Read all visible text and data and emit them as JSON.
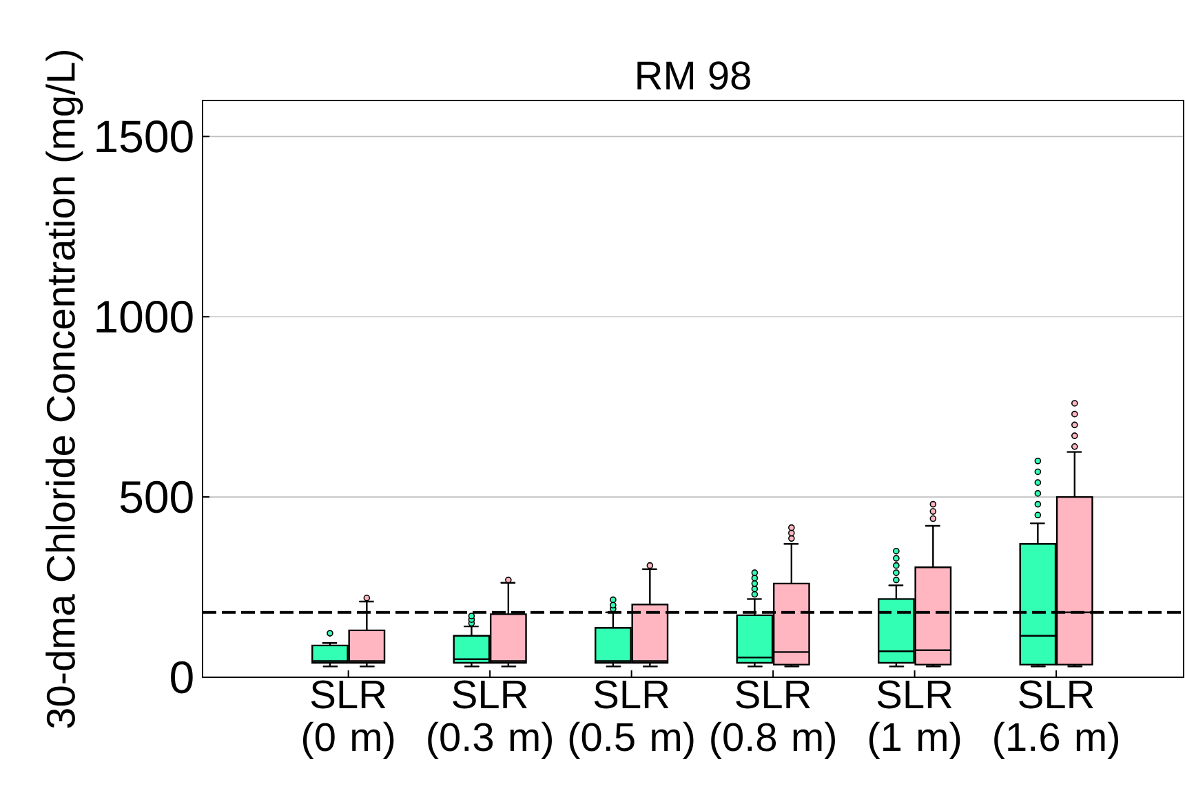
{
  "chart_data": {
    "type": "box",
    "title": "RM 98",
    "ylabel": "30-dma Chloride Concentration (mg/L)",
    "categories": [
      "SLR (0 m)",
      "SLR (0.3 m)",
      "SLR (0.5 m)",
      "SLR (0.8 m)",
      "SLR (1 m)",
      "SLR (1.6 m)"
    ],
    "ylim": [
      0,
      1600
    ],
    "yticks": [
      0,
      500,
      1000,
      1500
    ],
    "grid": "y",
    "ref_lines": [
      {
        "axis": "y",
        "value": 180,
        "line_style": "dashed",
        "color": "#000000"
      }
    ],
    "series": [
      {
        "color": "#33ffb4",
        "boxes": [
          {
            "low": 30,
            "q1": 40,
            "median": 45,
            "q3": 88,
            "high": 95,
            "outliers": [
              122
            ]
          },
          {
            "low": 30,
            "q1": 40,
            "median": 50,
            "q3": 115,
            "high": 141,
            "outliers": [
              150,
              160,
              170
            ]
          },
          {
            "low": 30,
            "q1": 40,
            "median": 45,
            "q3": 137,
            "high": 180,
            "outliers": [
              190,
              200,
              215
            ]
          },
          {
            "low": 30,
            "q1": 40,
            "median": 55,
            "q3": 172,
            "high": 217,
            "outliers": [
              230,
              245,
              260,
              275,
              290
            ]
          },
          {
            "low": 30,
            "q1": 40,
            "median": 72,
            "q3": 217,
            "high": 255,
            "outliers": [
              270,
              290,
              310,
              330,
              350
            ]
          },
          {
            "low": 30,
            "q1": 35,
            "median": 115,
            "q3": 370,
            "high": 427,
            "outliers": [
              450,
              480,
              510,
              540,
              570,
              600
            ]
          }
        ]
      },
      {
        "color": "#ffb6c1",
        "boxes": [
          {
            "low": 30,
            "q1": 40,
            "median": 45,
            "q3": 130,
            "high": 210,
            "outliers": [
              220
            ]
          },
          {
            "low": 30,
            "q1": 40,
            "median": 45,
            "q3": 175,
            "high": 262,
            "outliers": [
              270
            ]
          },
          {
            "low": 30,
            "q1": 40,
            "median": 45,
            "q3": 202,
            "high": 300,
            "outliers": [
              310
            ]
          },
          {
            "low": 30,
            "q1": 35,
            "median": 70,
            "q3": 260,
            "high": 370,
            "outliers": [
              385,
              400,
              415
            ]
          },
          {
            "low": 30,
            "q1": 35,
            "median": 75,
            "q3": 305,
            "high": 420,
            "outliers": [
              440,
              460,
              480
            ]
          },
          {
            "low": 30,
            "q1": 35,
            "median": 180,
            "q3": 500,
            "high": 625,
            "outliers": [
              640,
              670,
              700,
              730,
              760
            ]
          }
        ]
      }
    ]
  }
}
